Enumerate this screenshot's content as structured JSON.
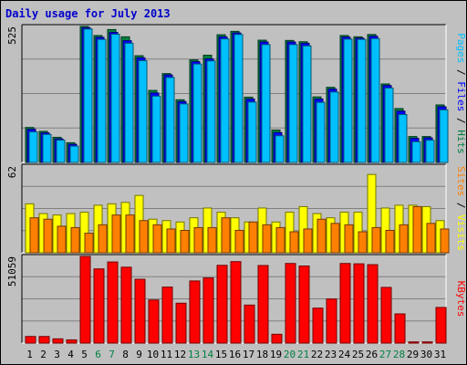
{
  "title": "Daily usage for July 2013",
  "chart_data": [
    {
      "type": "bar",
      "name": "hits-files-pages",
      "categories": [
        "1",
        "2",
        "3",
        "4",
        "5",
        "6",
        "7",
        "8",
        "9",
        "10",
        "11",
        "12",
        "13",
        "14",
        "15",
        "16",
        "17",
        "18",
        "19",
        "20",
        "21",
        "22",
        "23",
        "24",
        "25",
        "26",
        "27",
        "28",
        "29",
        "30",
        "31"
      ],
      "ymax": 525,
      "ymax_label": "525",
      "right_label_parts": [
        {
          "text": "Pages",
          "color": "#00c0ff"
        },
        {
          "text": " / ",
          "color": "#000000"
        },
        {
          "text": "Files",
          "color": "#0000ff"
        },
        {
          "text": " / ",
          "color": "#000000"
        },
        {
          "text": "Hits",
          "color": "#008040"
        }
      ],
      "series": [
        {
          "name": "Hits",
          "color": "#008040",
          "values": [
            135,
            120,
            97,
            76,
            525,
            490,
            513,
            485,
            412,
            278,
            343,
            242,
            396,
            414,
            493,
            506,
            252,
            472,
            125,
            471,
            466,
            253,
            290,
            490,
            485,
            494,
            303,
            208,
            100,
            100,
            222
          ]
        },
        {
          "name": "Files",
          "color": "#0000ff",
          "values": [
            128,
            114,
            91,
            70,
            520,
            483,
            502,
            470,
            404,
            268,
            338,
            235,
            389,
            400,
            485,
            500,
            245,
            465,
            115,
            465,
            460,
            245,
            283,
            484,
            480,
            487,
            297,
            198,
            93,
            95,
            215
          ]
        },
        {
          "name": "Pages",
          "color": "#00c0ff",
          "values": [
            118,
            108,
            86,
            63,
            515,
            475,
            495,
            460,
            393,
            256,
            328,
            226,
            380,
            392,
            477,
            494,
            233,
            455,
            103,
            455,
            450,
            232,
            272,
            476,
            475,
            478,
            287,
            185,
            80,
            86,
            203
          ]
        }
      ]
    },
    {
      "type": "bar",
      "name": "visits-sites",
      "categories": [
        "1",
        "2",
        "3",
        "4",
        "5",
        "6",
        "7",
        "8",
        "9",
        "10",
        "11",
        "12",
        "13",
        "14",
        "15",
        "16",
        "17",
        "18",
        "19",
        "20",
        "21",
        "22",
        "23",
        "24",
        "25",
        "26",
        "27",
        "28",
        "29",
        "30",
        "31"
      ],
      "ymax": 62,
      "ymax_label": "62",
      "right_label_parts": [
        {
          "text": "Sites",
          "color": "#ff8000"
        },
        {
          "text": " / ",
          "color": "#000000"
        },
        {
          "text": "Visits",
          "color": "#ffff00"
        }
      ],
      "series": [
        {
          "name": "Visits",
          "color": "#ffff00",
          "values": [
            35,
            28,
            27,
            28,
            29,
            34,
            35,
            36,
            41,
            24,
            23,
            22,
            25,
            32,
            29,
            25,
            22,
            32,
            22,
            29,
            33,
            28,
            25,
            29,
            29,
            56,
            32,
            34,
            34,
            33,
            23
          ]
        },
        {
          "name": "Sites",
          "color": "#ff8000",
          "values": [
            25,
            24,
            19,
            18,
            14,
            20,
            27,
            27,
            23,
            20,
            17,
            16,
            18,
            18,
            25,
            16,
            22,
            20,
            18,
            15,
            17,
            24,
            21,
            20,
            15,
            18,
            16,
            20,
            33,
            21,
            17
          ]
        }
      ]
    },
    {
      "type": "bar",
      "name": "kbytes",
      "categories": [
        "1",
        "2",
        "3",
        "4",
        "5",
        "6",
        "7",
        "8",
        "9",
        "10",
        "11",
        "12",
        "13",
        "14",
        "15",
        "16",
        "17",
        "18",
        "19",
        "20",
        "21",
        "22",
        "23",
        "24",
        "25",
        "26",
        "27",
        "28",
        "29",
        "30",
        "31"
      ],
      "ymax": 51059,
      "ymax_label": "51059",
      "right_label_parts": [
        {
          "text": "KBytes",
          "color": "#ff0000"
        }
      ],
      "series": [
        {
          "name": "KBytes",
          "color": "#ff0000",
          "values": [
            3900,
            3900,
            2500,
            1900,
            51059,
            43700,
            47800,
            44700,
            37600,
            25400,
            33000,
            23500,
            36600,
            38400,
            45800,
            48000,
            22400,
            45700,
            5200,
            46900,
            45400,
            20600,
            26000,
            46900,
            46700,
            46200,
            32800,
            17200,
            700,
            700,
            21000
          ]
        }
      ]
    }
  ],
  "x_labels": [
    {
      "text": "1",
      "color": "#000000"
    },
    {
      "text": "2",
      "color": "#000000"
    },
    {
      "text": "3",
      "color": "#000000"
    },
    {
      "text": "4",
      "color": "#000000"
    },
    {
      "text": "5",
      "color": "#000000"
    },
    {
      "text": "6",
      "color": "#008040"
    },
    {
      "text": "7",
      "color": "#008040"
    },
    {
      "text": "8",
      "color": "#000000"
    },
    {
      "text": "9",
      "color": "#000000"
    },
    {
      "text": "10",
      "color": "#000000"
    },
    {
      "text": "11",
      "color": "#000000"
    },
    {
      "text": "12",
      "color": "#000000"
    },
    {
      "text": "13",
      "color": "#008040"
    },
    {
      "text": "14",
      "color": "#008040"
    },
    {
      "text": "15",
      "color": "#000000"
    },
    {
      "text": "16",
      "color": "#000000"
    },
    {
      "text": "17",
      "color": "#000000"
    },
    {
      "text": "18",
      "color": "#000000"
    },
    {
      "text": "19",
      "color": "#000000"
    },
    {
      "text": "20",
      "color": "#008040"
    },
    {
      "text": "21",
      "color": "#008040"
    },
    {
      "text": "22",
      "color": "#000000"
    },
    {
      "text": "23",
      "color": "#000000"
    },
    {
      "text": "24",
      "color": "#000000"
    },
    {
      "text": "25",
      "color": "#000000"
    },
    {
      "text": "26",
      "color": "#000000"
    },
    {
      "text": "27",
      "color": "#008040"
    },
    {
      "text": "28",
      "color": "#008040"
    },
    {
      "text": "29",
      "color": "#000000"
    },
    {
      "text": "30",
      "color": "#000000"
    },
    {
      "text": "31",
      "color": "#000000"
    }
  ]
}
